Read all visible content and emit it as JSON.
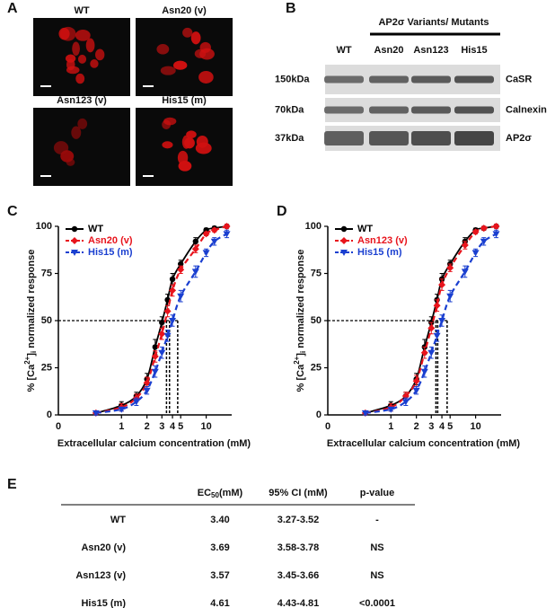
{
  "panel_a": {
    "label": "A",
    "images": [
      "WT",
      "Asn20 (v)",
      "Asn123 (v)",
      "His15 (m)"
    ]
  },
  "panel_b": {
    "label": "B",
    "header": "AP2σ Variants/ Mutants",
    "lanes": [
      "WT",
      "Asn20",
      "Asn123",
      "His15"
    ],
    "rows": [
      {
        "size": "150kDa",
        "protein": "CaSR"
      },
      {
        "size": "70kDa",
        "protein": "Calnexin"
      },
      {
        "size": "37kDa",
        "protein": "AP2σ"
      }
    ]
  },
  "chart_data": [
    {
      "type": "line",
      "label": "C",
      "xscale": "log",
      "x_origin_label": "0",
      "xlabel": "Extracellular calcium concentration (mM)",
      "ylabel": [
        "% [Ca",
        "2+",
        "]",
        "i",
        " normalized response"
      ],
      "x": [
        0.5,
        1,
        1.5,
        2,
        2.5,
        3,
        3.5,
        4,
        5,
        7.5,
        10,
        12.5,
        17.5
      ],
      "xlim": [
        0.18,
        20
      ],
      "xticks": [
        1,
        2,
        3,
        4,
        5,
        10
      ],
      "ylim": [
        0,
        100
      ],
      "yticks": [
        0,
        25,
        50,
        75,
        100
      ],
      "reference_y": 50,
      "series": [
        {
          "name": "WT",
          "color": "#000000",
          "marker": "circle",
          "dashed": false,
          "ec50": 3.4,
          "values": [
            1,
            5,
            10,
            19,
            36,
            49,
            61,
            72,
            80,
            92,
            98,
            99,
            100
          ],
          "errors": [
            1,
            2,
            2,
            3,
            4,
            3,
            3,
            3,
            2,
            2,
            1,
            1,
            1
          ]
        },
        {
          "name": "Asn20 (v)",
          "color": "#e8141c",
          "marker": "diamond",
          "dashed": true,
          "ec50": 3.69,
          "values": [
            1,
            4,
            9,
            17,
            31,
            43,
            55,
            66,
            77,
            88,
            96,
            98,
            100
          ],
          "errors": [
            1,
            2,
            2,
            3,
            3,
            3,
            3,
            3,
            2,
            2,
            1,
            1,
            1
          ]
        },
        {
          "name": "His15 (m)",
          "color": "#1a3fd0",
          "marker": "triangle-down",
          "dashed": true,
          "ec50": 4.61,
          "values": [
            1,
            3,
            7,
            13,
            23,
            33,
            42,
            50,
            63,
            76,
            86,
            92,
            96
          ],
          "errors": [
            1,
            1,
            2,
            2,
            3,
            3,
            3,
            3,
            3,
            3,
            2,
            2,
            2
          ]
        }
      ]
    },
    {
      "type": "line",
      "label": "D",
      "xscale": "log",
      "x_origin_label": "0",
      "xlabel": "Extracellular calcium concentration (mM)",
      "ylabel": [
        "% [Ca",
        "2+",
        "]",
        "i",
        " normalized response"
      ],
      "x": [
        0.5,
        1,
        1.5,
        2,
        2.5,
        3,
        3.5,
        4,
        5,
        7.5,
        10,
        12.5,
        17.5
      ],
      "xlim": [
        0.18,
        20
      ],
      "xticks": [
        1,
        2,
        3,
        4,
        5,
        10
      ],
      "ylim": [
        0,
        100
      ],
      "yticks": [
        0,
        25,
        50,
        75,
        100
      ],
      "reference_y": 50,
      "series": [
        {
          "name": "WT",
          "color": "#000000",
          "marker": "circle",
          "dashed": false,
          "ec50": 3.4,
          "values": [
            1,
            5,
            10,
            19,
            36,
            49,
            61,
            72,
            80,
            92,
            98,
            99,
            100
          ],
          "errors": [
            1,
            2,
            2,
            3,
            4,
            3,
            3,
            3,
            2,
            2,
            1,
            1,
            1
          ]
        },
        {
          "name": "Asn123 (v)",
          "color": "#e8141c",
          "marker": "diamond",
          "dashed": true,
          "ec50": 3.57,
          "values": [
            1,
            4,
            10,
            18,
            33,
            46,
            58,
            69,
            78,
            90,
            97,
            99,
            100
          ],
          "errors": [
            1,
            2,
            2,
            3,
            3,
            3,
            3,
            3,
            2,
            2,
            1,
            1,
            1
          ]
        },
        {
          "name": "His15 (m)",
          "color": "#1a3fd0",
          "marker": "triangle-down",
          "dashed": true,
          "ec50": 4.61,
          "values": [
            1,
            3,
            7,
            13,
            23,
            33,
            42,
            50,
            63,
            76,
            86,
            92,
            96
          ],
          "errors": [
            1,
            1,
            2,
            2,
            3,
            3,
            3,
            3,
            3,
            3,
            2,
            2,
            2
          ]
        }
      ]
    }
  ],
  "panel_e": {
    "label": "E",
    "header": {
      "ec50": [
        "EC",
        "50",
        "(mM)"
      ],
      "ci": "95% CI (mM)",
      "p": "p-value"
    },
    "rows": [
      [
        "WT",
        "3.40",
        "3.27-3.52",
        "-"
      ],
      [
        "Asn20 (v)",
        "3.69",
        "3.58-3.78",
        "NS"
      ],
      [
        "Asn123 (v)",
        "3.57",
        "3.45-3.66",
        "NS"
      ],
      [
        "His15 (m)",
        "4.61",
        "4.43-4.81",
        "<0.0001"
      ]
    ]
  }
}
